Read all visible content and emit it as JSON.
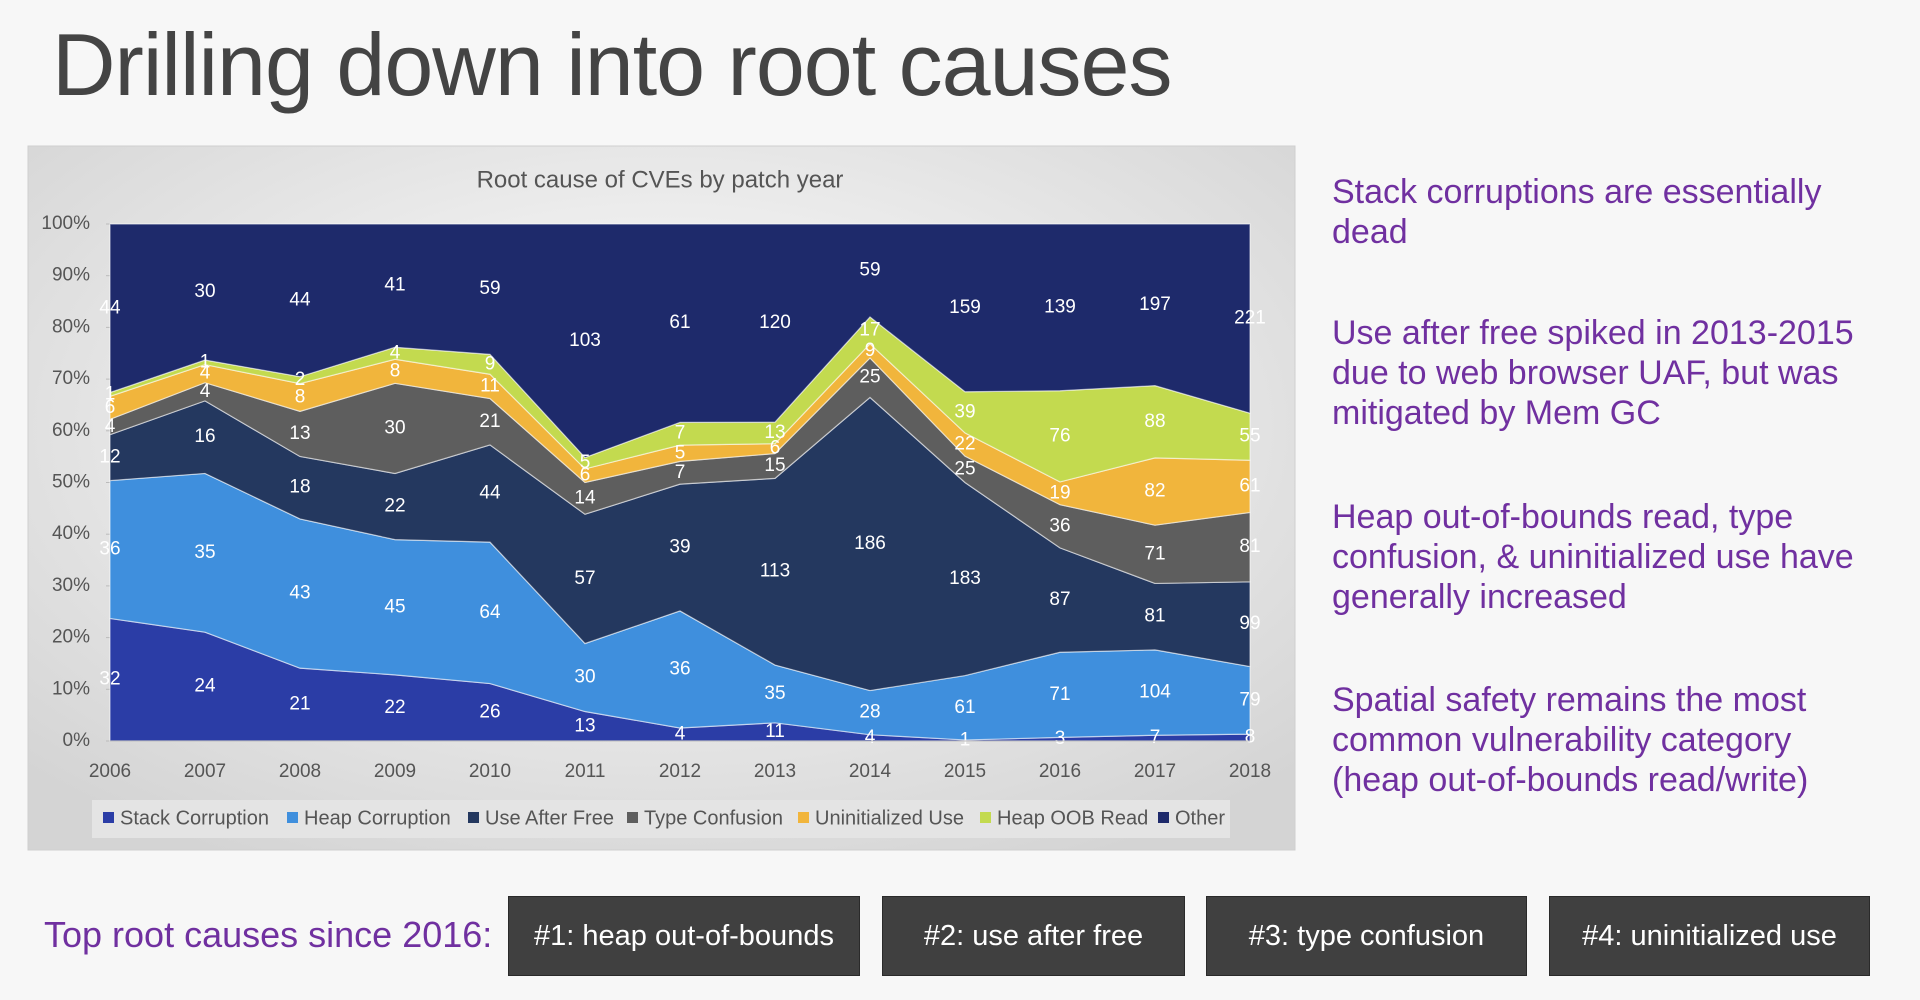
{
  "title": "Drilling down into root causes",
  "chart_data": {
    "type": "stacked_area_percent",
    "title": "Root cause of CVEs by patch year",
    "categories": [
      "2006",
      "2007",
      "2008",
      "2009",
      "2010",
      "2011",
      "2012",
      "2013",
      "2014",
      "2015",
      "2016",
      "2017",
      "2018"
    ],
    "series": [
      {
        "name": "Stack Corruption",
        "color": "#2b3da6",
        "values": [
          32,
          24,
          21,
          22,
          26,
          13,
          4,
          11,
          4,
          1,
          3,
          7,
          8
        ]
      },
      {
        "name": "Heap Corruption",
        "color": "#3f8fdd",
        "values": [
          36,
          35,
          43,
          45,
          64,
          30,
          36,
          35,
          28,
          61,
          71,
          104,
          79
        ]
      },
      {
        "name": "Use After Free",
        "color": "#24385f",
        "values": [
          12,
          16,
          18,
          22,
          44,
          57,
          39,
          113,
          186,
          183,
          87,
          81,
          99
        ]
      },
      {
        "name": "Type Confusion",
        "color": "#5e5e5e",
        "values": [
          4,
          4,
          13,
          30,
          21,
          14,
          7,
          15,
          25,
          25,
          36,
          71,
          81
        ]
      },
      {
        "name": "Uninitialized Use",
        "color": "#f1b53c",
        "values": [
          6,
          4,
          8,
          8,
          11,
          6,
          5,
          6,
          9,
          22,
          19,
          82,
          61
        ]
      },
      {
        "name": "Heap OOB Read",
        "color": "#c3da4f",
        "values": [
          1,
          1,
          2,
          4,
          9,
          5,
          7,
          13,
          17,
          39,
          76,
          88,
          55
        ]
      },
      {
        "name": "Other",
        "color": "#1e2a6b",
        "values": [
          44,
          30,
          44,
          41,
          59,
          103,
          61,
          120,
          59,
          159,
          139,
          197,
          221
        ]
      }
    ],
    "ylim": [
      0,
      100
    ],
    "yticks": [
      {
        "value": 0,
        "label": "0%"
      },
      {
        "value": 10,
        "label": "10%"
      },
      {
        "value": 20,
        "label": "20%"
      },
      {
        "value": 30,
        "label": "30%"
      },
      {
        "value": 40,
        "label": "40%"
      },
      {
        "value": 50,
        "label": "50%"
      },
      {
        "value": 60,
        "label": "60%"
      },
      {
        "value": 70,
        "label": "70%"
      },
      {
        "value": 80,
        "label": "80%"
      },
      {
        "value": 90,
        "label": "90%"
      },
      {
        "value": 100,
        "label": "100%"
      }
    ],
    "legend": "bottom"
  },
  "notes": [
    "Stack corruptions are essentially dead",
    "Use after free spiked in 2013-2015 due to web browser UAF, but was mitigated by Mem GC",
    "Heap out-of-bounds read, type confusion, & uninitialized use have generally increased",
    "Spatial safety remains the most common vulnerability category (heap out-of-bounds read/write)"
  ],
  "bottom": {
    "label": "Top root causes since 2016:",
    "items": [
      "#1: heap out-of-bounds",
      "#2: use after free",
      "#3: type confusion",
      "#4: uninitialized use"
    ]
  }
}
